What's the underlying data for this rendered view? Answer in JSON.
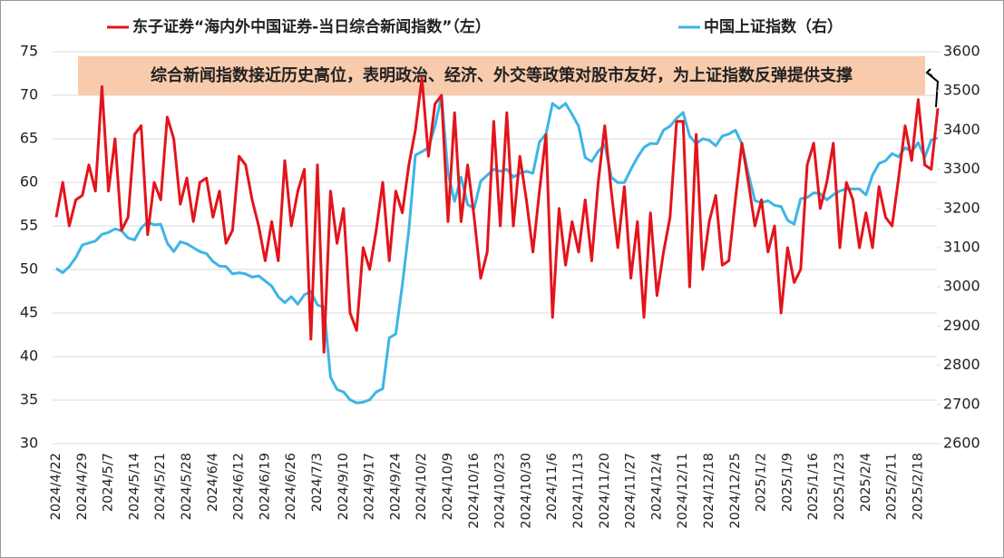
{
  "chart_data": {
    "type": "line",
    "annotations": [
      "综合新闻指数接近历史高位，表明政治、经济、外交等政策对股市友好，为上证指数反弹提供支撑"
    ],
    "categories": [
      "2024/4/22",
      null,
      null,
      null,
      "2024/4/29",
      null,
      null,
      null,
      "2024/5/7",
      null,
      null,
      null,
      "2024/5/14",
      null,
      null,
      null,
      "2024/5/21",
      null,
      null,
      null,
      "2024/5/28",
      null,
      null,
      null,
      "2024/6/4",
      null,
      null,
      null,
      "2024/6/12",
      null,
      null,
      null,
      "2024/6/19",
      null,
      null,
      null,
      "2024/6/26",
      null,
      null,
      null,
      "2024/7/3",
      null,
      null,
      null,
      "2024/9/10",
      null,
      null,
      null,
      "2024/9/17",
      null,
      null,
      null,
      "2024/9/24",
      null,
      null,
      null,
      "2024/10/2",
      null,
      null,
      null,
      "2024/10/9",
      null,
      null,
      null,
      "2024/10/16",
      null,
      null,
      null,
      "2024/10/23",
      null,
      null,
      null,
      "2024/10/30",
      null,
      null,
      null,
      "2024/11/6",
      null,
      null,
      null,
      "2024/11/13",
      null,
      null,
      null,
      "2024/11/20",
      null,
      null,
      null,
      "2024/11/27",
      null,
      null,
      null,
      "2024/12/4",
      null,
      null,
      null,
      "2024/12/11",
      null,
      null,
      null,
      "2024/12/18",
      null,
      null,
      null,
      "2024/12/25",
      null,
      null,
      null,
      "2025/1/2",
      null,
      null,
      null,
      "2025/1/9",
      null,
      null,
      null,
      "2025/1/16",
      null,
      null,
      null,
      "2025/1/23",
      null,
      null,
      null,
      "2025/2/4",
      null,
      null,
      null,
      "2025/2/11",
      null,
      null,
      null,
      "2025/2/18",
      null,
      null,
      null
    ],
    "series": [
      {
        "name": "东子证券“海内外中国证券-当日综合新闻指数”（左）",
        "color": "#e3141b",
        "axis": "y",
        "values": [
          56,
          60,
          55,
          58,
          58.5,
          62,
          59,
          71,
          59,
          65,
          54.5,
          56,
          65.5,
          66.5,
          54,
          60,
          58,
          67.5,
          65,
          57.5,
          60.5,
          55.5,
          60,
          60.5,
          56,
          59,
          53,
          54.5,
          63,
          62,
          58,
          55,
          51,
          55.5,
          51,
          62.5,
          55,
          59,
          61.5,
          42,
          62,
          40.5,
          59,
          53,
          57,
          45,
          43,
          52.5,
          50,
          54.5,
          60,
          51,
          59,
          56.5,
          62,
          66,
          72,
          63,
          69,
          70,
          55.5,
          68,
          55.5,
          62,
          56,
          49,
          52,
          67,
          55,
          68,
          55,
          63,
          58,
          52,
          59,
          65.5,
          44.5,
          57,
          50.5,
          55.5,
          52,
          58,
          51,
          60,
          66.5,
          59,
          52.5,
          59.5,
          49,
          55.5,
          44.5,
          56.5,
          47,
          52,
          56,
          67,
          67,
          48,
          65.5,
          50,
          55.5,
          58.5,
          50.5,
          51,
          58,
          64.5,
          60,
          55,
          58,
          52,
          55,
          45,
          52.5,
          48.5,
          50,
          62,
          64.5,
          57,
          60,
          64.5,
          52.5,
          60,
          58,
          52.5,
          56.5,
          52.5,
          59.5,
          56,
          55,
          60.5,
          66.5,
          62.5,
          69.5,
          62,
          61.5,
          68.5
        ]
      },
      {
        "name": "中国上证指数（右）",
        "color": "#3db5e6",
        "axis": "y2",
        "values": [
          3047,
          3036,
          3052,
          3075,
          3107,
          3112,
          3117,
          3134,
          3139,
          3148,
          3143,
          3125,
          3120,
          3150,
          3166,
          3158,
          3160,
          3112,
          3090,
          3115,
          3110,
          3100,
          3090,
          3085,
          3065,
          3053,
          3052,
          3033,
          3036,
          3033,
          3025,
          3028,
          3015,
          3002,
          2975,
          2960,
          2975,
          2956,
          2980,
          2988,
          2954,
          2948,
          2770,
          2738,
          2732,
          2712,
          2704,
          2706,
          2712,
          2732,
          2740,
          2870,
          2880,
          3005,
          3145,
          3336,
          3345,
          3355,
          3410,
          3487,
          3290,
          3218,
          3280,
          3210,
          3200,
          3270,
          3285,
          3300,
          3295,
          3300,
          3280,
          3290,
          3295,
          3290,
          3370,
          3390,
          3468,
          3455,
          3468,
          3440,
          3410,
          3330,
          3320,
          3346,
          3363,
          3280,
          3266,
          3266,
          3300,
          3330,
          3356,
          3366,
          3365,
          3400,
          3410,
          3430,
          3445,
          3385,
          3365,
          3378,
          3374,
          3360,
          3385,
          3390,
          3400,
          3365,
          3288,
          3220,
          3215,
          3220,
          3208,
          3205,
          3170,
          3160,
          3225,
          3228,
          3240,
          3238,
          3222,
          3235,
          3245,
          3250,
          3250,
          3250,
          3235,
          3285,
          3315,
          3322,
          3340,
          3332,
          3355,
          3345,
          3368,
          3330,
          3375,
          3380
        ]
      }
    ],
    "ylim": [
      30,
      75
    ],
    "yticks": [
      30,
      35,
      40,
      45,
      50,
      55,
      60,
      65,
      70,
      75
    ],
    "y2lim": [
      2600,
      3600
    ],
    "y2ticks": [
      2600,
      2700,
      2800,
      2900,
      3000,
      3100,
      3200,
      3300,
      3400,
      3500,
      3600
    ],
    "grid": true
  }
}
